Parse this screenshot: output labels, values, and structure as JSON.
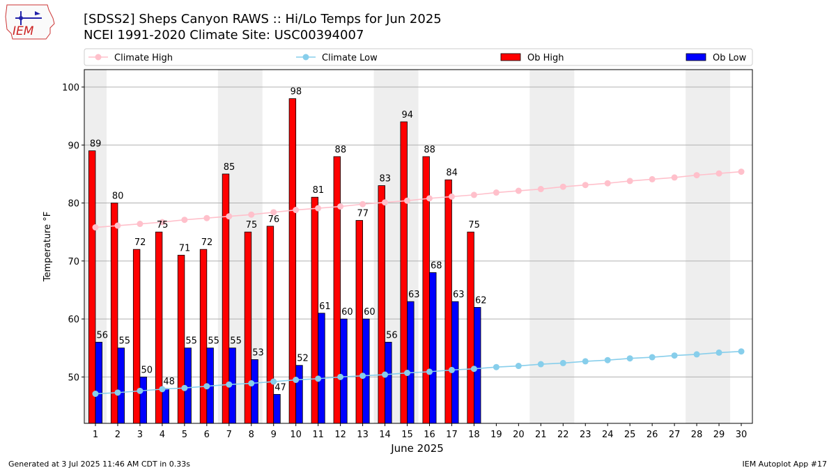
{
  "header": {
    "logo_text": "IEM",
    "title_line1": "[SDSS2] Sheps Canyon RAWS :: Hi/Lo Temps for Jun 2025",
    "title_line2": "NCEI 1991-2020 Climate Site: USC00394007"
  },
  "footer": {
    "generated": "Generated at 3 Jul 2025 11:46 AM CDT in 0.33s",
    "app": "IEM Autoplot App #17"
  },
  "colors": {
    "climate_high": "#ffc0cb",
    "climate_low": "#87ceeb",
    "ob_high": "#ff0000",
    "ob_low": "#0000ff",
    "weekend_band": "#eeeeee",
    "grid": "#b0b0b0"
  },
  "chart_data": {
    "type": "bar",
    "xlabel": "June 2025",
    "ylabel": "Temperature °F",
    "ylim": [
      42,
      103
    ],
    "yticks": [
      50,
      60,
      70,
      80,
      90,
      100
    ],
    "xlim": [
      0.5,
      30.5
    ],
    "x": [
      1,
      2,
      3,
      4,
      5,
      6,
      7,
      8,
      9,
      10,
      11,
      12,
      13,
      14,
      15,
      16,
      17,
      18,
      19,
      20,
      21,
      22,
      23,
      24,
      25,
      26,
      27,
      28,
      29,
      30
    ],
    "grid": "horizontal",
    "legend_position": "top",
    "weekend_bands": [
      [
        1,
        1
      ],
      [
        7,
        8
      ],
      [
        14,
        15
      ],
      [
        21,
        22
      ],
      [
        28,
        29
      ]
    ],
    "series": [
      {
        "name": "Climate High",
        "kind": "line",
        "values": [
          75.8,
          76.1,
          76.4,
          76.7,
          77.1,
          77.4,
          77.7,
          78.0,
          78.4,
          78.8,
          79.1,
          79.4,
          79.8,
          80.1,
          80.4,
          80.8,
          81.1,
          81.4,
          81.8,
          82.1,
          82.4,
          82.8,
          83.1,
          83.4,
          83.8,
          84.1,
          84.4,
          84.8,
          85.1,
          85.4
        ]
      },
      {
        "name": "Climate Low",
        "kind": "line",
        "values": [
          47.1,
          47.3,
          47.6,
          47.9,
          48.1,
          48.4,
          48.7,
          48.9,
          49.2,
          49.5,
          49.7,
          50.0,
          50.2,
          50.4,
          50.7,
          50.9,
          51.2,
          51.4,
          51.7,
          51.9,
          52.2,
          52.4,
          52.7,
          52.9,
          53.2,
          53.4,
          53.7,
          53.9,
          54.2,
          54.4
        ]
      },
      {
        "name": "Ob High",
        "kind": "bar",
        "values": [
          89,
          80,
          72,
          75,
          71,
          72,
          85,
          75,
          76,
          98,
          81,
          88,
          77,
          83,
          94,
          88,
          84,
          75,
          null,
          null,
          null,
          null,
          null,
          null,
          null,
          null,
          null,
          null,
          null,
          null
        ]
      },
      {
        "name": "Ob Low",
        "kind": "bar",
        "values": [
          56,
          55,
          50,
          48,
          55,
          55,
          55,
          53,
          47,
          52,
          61,
          60,
          60,
          56,
          63,
          68,
          63,
          62,
          null,
          null,
          null,
          null,
          null,
          null,
          null,
          null,
          null,
          null,
          null,
          null
        ]
      }
    ]
  }
}
